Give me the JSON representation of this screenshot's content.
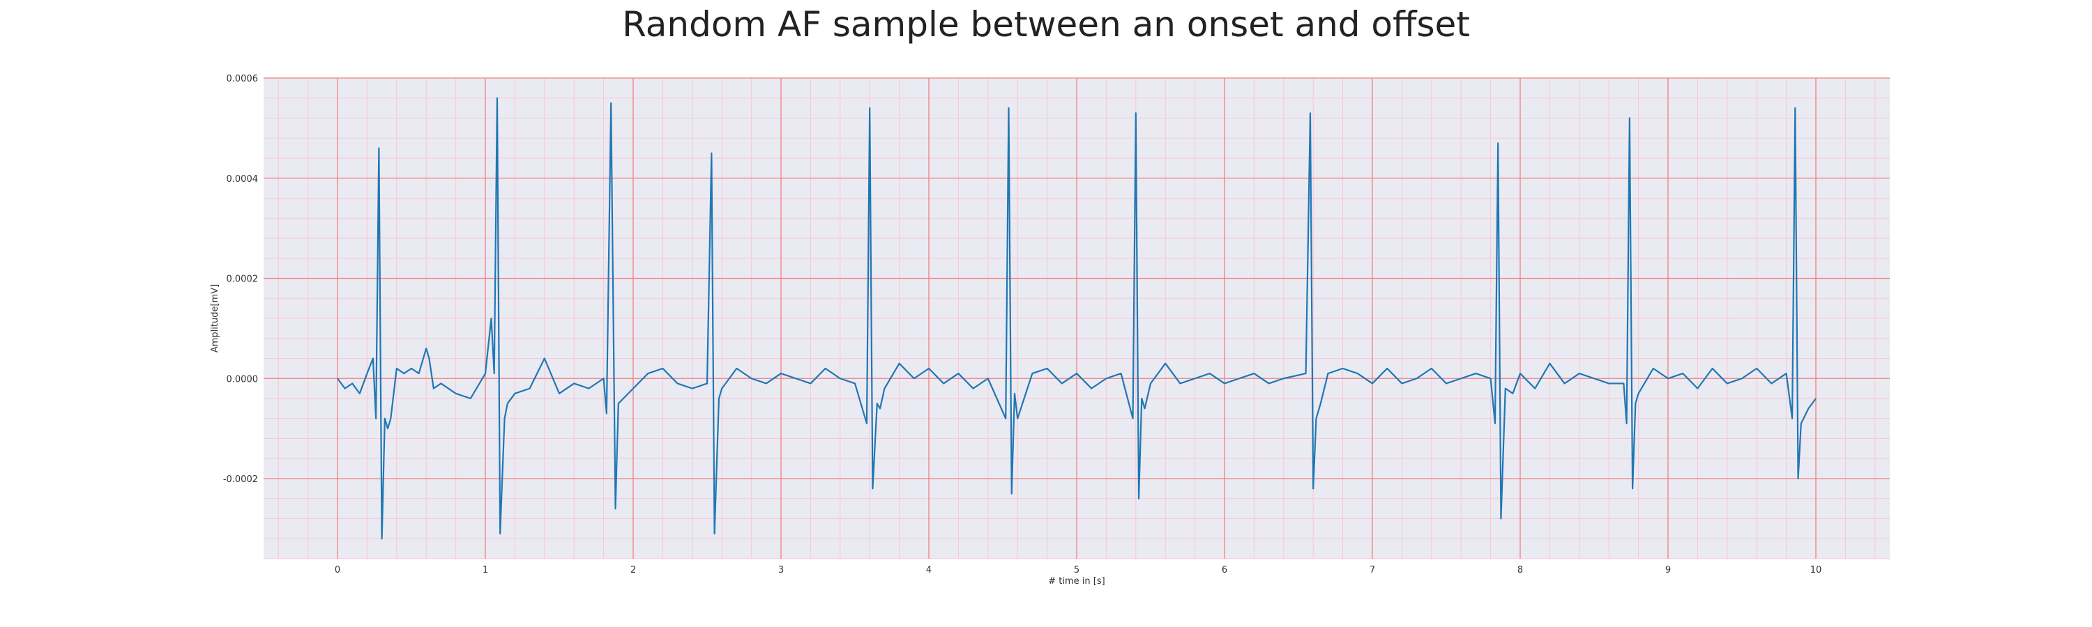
{
  "chart_data": {
    "type": "line",
    "title": "Random AF sample between an onset and offset",
    "xlabel": "# time in [s]",
    "ylabel": "Amplitude[mV]",
    "xlim": [
      -0.5,
      10.5
    ],
    "ylim": [
      -0.00036,
      0.0006
    ],
    "x_ticks": [
      0,
      1,
      2,
      3,
      4,
      5,
      6,
      7,
      8,
      9,
      10
    ],
    "x_tick_labels": [
      "0",
      "1",
      "2",
      "3",
      "4",
      "5",
      "6",
      "7",
      "8",
      "9",
      "10"
    ],
    "y_ticks": [
      -0.0002,
      0,
      0.0002,
      0.0004,
      0.0006
    ],
    "y_tick_labels": [
      "-0.0002",
      "0.0000",
      "0.0002",
      "0.0004",
      "0.0006"
    ],
    "grid": true,
    "grid_color": "#f08080",
    "minor_grid_color": "#f8c8d0",
    "background_color": "#eaeaf2",
    "series": [
      {
        "color": "#1f77b4",
        "x": [
          0,
          0.05,
          0.1,
          0.15,
          0.2,
          0.24,
          0.26,
          0.28,
          0.3,
          0.32,
          0.34,
          0.36,
          0.4,
          0.45,
          0.5,
          0.55,
          0.6,
          0.62,
          0.65,
          0.7,
          0.8,
          0.9,
          1.0,
          1.04,
          1.06,
          1.08,
          1.1,
          1.13,
          1.15,
          1.2,
          1.3,
          1.4,
          1.5,
          1.6,
          1.7,
          1.8,
          1.82,
          1.85,
          1.88,
          1.9,
          2.0,
          2.1,
          2.2,
          2.3,
          2.4,
          2.5,
          2.53,
          2.55,
          2.58,
          2.6,
          2.7,
          2.8,
          2.9,
          3.0,
          3.1,
          3.2,
          3.3,
          3.4,
          3.5,
          3.58,
          3.6,
          3.62,
          3.65,
          3.67,
          3.7,
          3.8,
          3.9,
          4.0,
          4.1,
          4.2,
          4.3,
          4.4,
          4.52,
          4.54,
          4.56,
          4.58,
          4.6,
          4.7,
          4.8,
          4.9,
          5.0,
          5.1,
          5.2,
          5.3,
          5.38,
          5.4,
          5.42,
          5.44,
          5.46,
          5.5,
          5.6,
          5.7,
          5.8,
          5.9,
          6.0,
          6.1,
          6.2,
          6.3,
          6.4,
          6.55,
          6.58,
          6.6,
          6.62,
          6.65,
          6.7,
          6.8,
          6.9,
          7.0,
          7.1,
          7.2,
          7.3,
          7.4,
          7.5,
          7.6,
          7.7,
          7.8,
          7.83,
          7.85,
          7.87,
          7.9,
          7.95,
          8.0,
          8.1,
          8.2,
          8.3,
          8.4,
          8.5,
          8.6,
          8.7,
          8.72,
          8.74,
          8.76,
          8.78,
          8.8,
          8.9,
          9.0,
          9.1,
          9.2,
          9.3,
          9.4,
          9.5,
          9.6,
          9.7,
          9.8,
          9.84,
          9.86,
          9.88,
          9.9,
          9.95,
          10.0
        ],
        "y": [
          0,
          -2e-05,
          -1e-05,
          -3e-05,
          1e-05,
          4e-05,
          -8e-05,
          0.00046,
          -0.00032,
          -8e-05,
          -0.0001,
          -8e-05,
          2e-05,
          1e-05,
          2e-05,
          1e-05,
          6e-05,
          4e-05,
          -2e-05,
          -1e-05,
          -3e-05,
          -4e-05,
          1e-05,
          0.00012,
          1e-05,
          0.00056,
          -0.00031,
          -8e-05,
          -5e-05,
          -3e-05,
          -2e-05,
          4e-05,
          -3e-05,
          -1e-05,
          -2e-05,
          0.0,
          -7e-05,
          0.00055,
          -0.00026,
          -5e-05,
          -2e-05,
          1e-05,
          2e-05,
          -1e-05,
          -2e-05,
          -1e-05,
          0.00045,
          -0.00031,
          -4e-05,
          -2e-05,
          2e-05,
          0.0,
          -1e-05,
          1e-05,
          0.0,
          -1e-05,
          2e-05,
          0.0,
          -1e-05,
          -9e-05,
          0.00054,
          -0.00022,
          -5e-05,
          -6e-05,
          -2e-05,
          3e-05,
          0.0,
          2e-05,
          -1e-05,
          1e-05,
          -2e-05,
          0.0,
          -8e-05,
          0.00054,
          -0.00023,
          -3e-05,
          -8e-05,
          1e-05,
          2e-05,
          -1e-05,
          1e-05,
          -2e-05,
          0.0,
          1e-05,
          -8e-05,
          0.00053,
          -0.00024,
          -4e-05,
          -6e-05,
          -1e-05,
          3e-05,
          -1e-05,
          0.0,
          1e-05,
          -1e-05,
          0.0,
          1e-05,
          -1e-05,
          0.0,
          1e-05,
          0.00053,
          -0.00022,
          -8e-05,
          -5e-05,
          1e-05,
          2e-05,
          1e-05,
          -1e-05,
          2e-05,
          -1e-05,
          0.0,
          2e-05,
          -1e-05,
          0.0,
          1e-05,
          0.0,
          -9e-05,
          0.00047,
          -0.00028,
          -2e-05,
          -3e-05,
          1e-05,
          -2e-05,
          3e-05,
          -1e-05,
          1e-05,
          0.0,
          -1e-05,
          -1e-05,
          -9e-05,
          0.00052,
          -0.00022,
          -5e-05,
          -3e-05,
          2e-05,
          0.0,
          1e-05,
          -2e-05,
          2e-05,
          -1e-05,
          0.0,
          2e-05,
          -1e-05,
          1e-05,
          -8e-05,
          0.00054,
          -0.0002,
          -9e-05,
          -6e-05,
          -4e-05
        ]
      }
    ]
  }
}
